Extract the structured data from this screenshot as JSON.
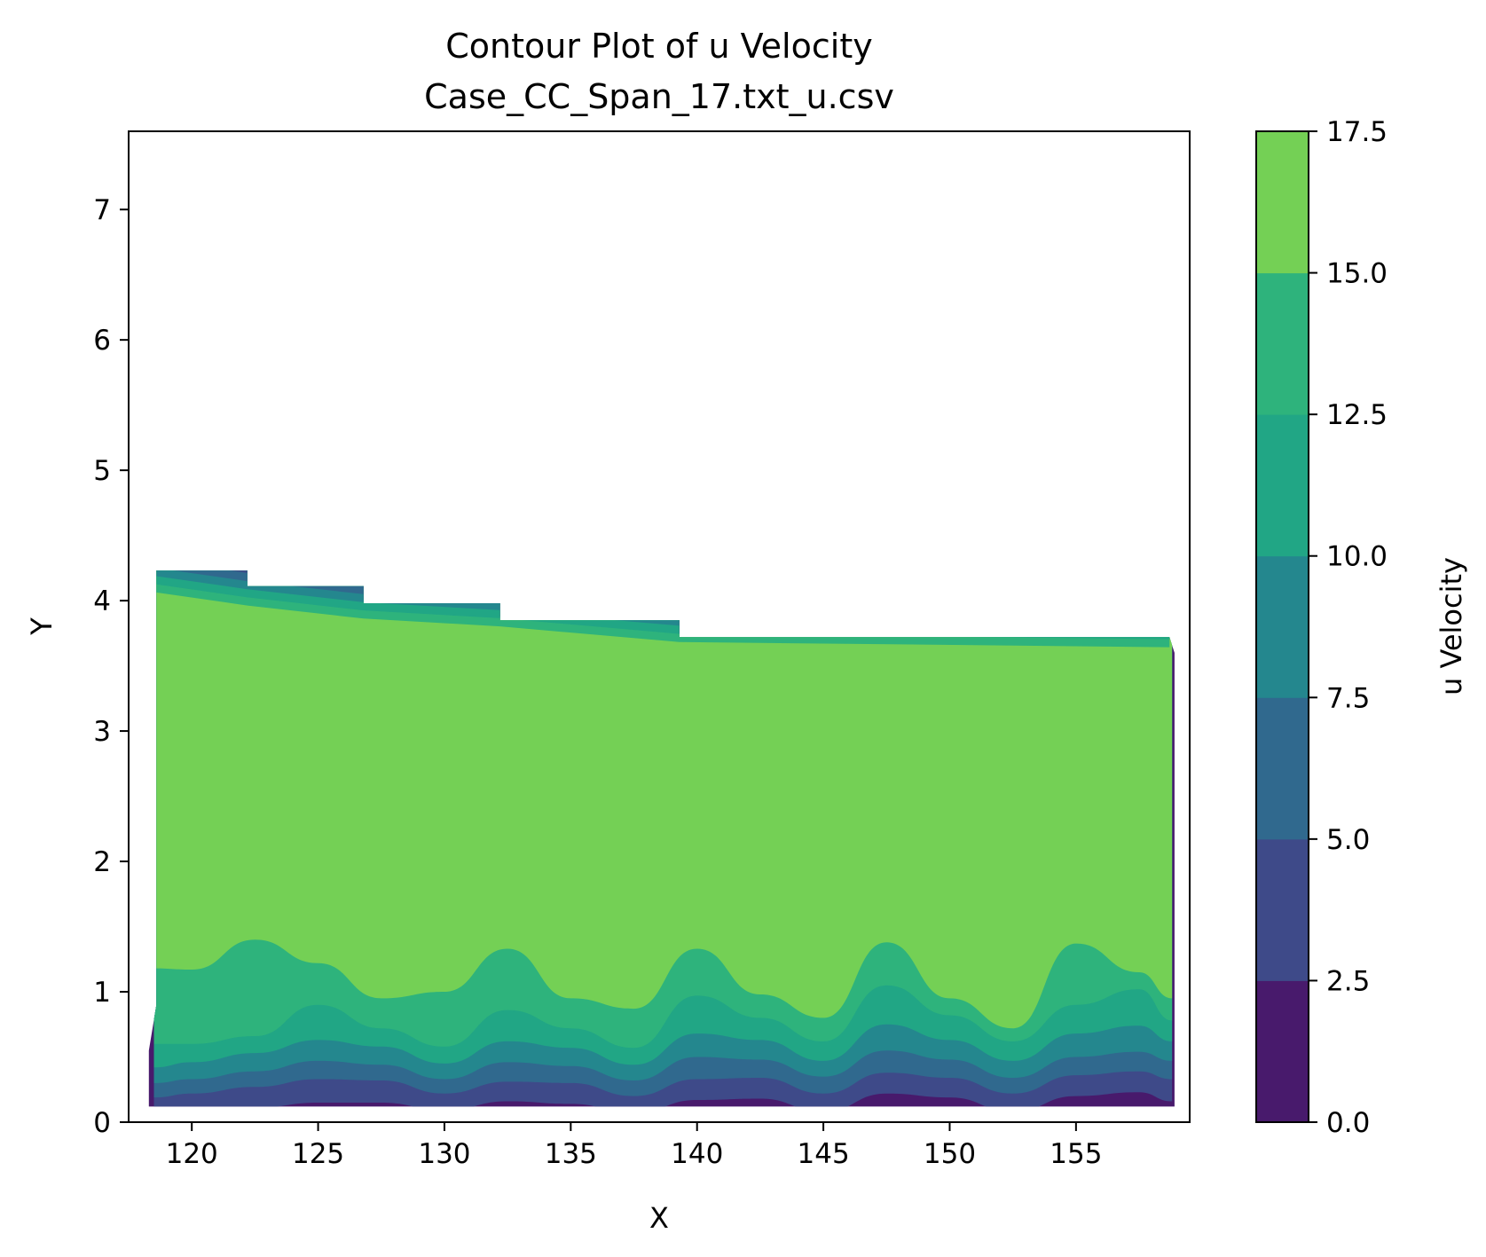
{
  "chart_data": {
    "type": "contourf",
    "title": "Contour Plot of u Velocity",
    "subtitle": "Case_CC_Span_17.txt_u.csv",
    "xlabel": "X",
    "ylabel": "Y",
    "xlim": [
      117.5,
      159.5
    ],
    "ylim": [
      0,
      7.6
    ],
    "xticks": [
      "120",
      "125",
      "130",
      "135",
      "140",
      "145",
      "150",
      "155"
    ],
    "xtick_values": [
      120,
      125,
      130,
      135,
      140,
      145,
      150,
      155
    ],
    "yticks": [
      "0",
      "1",
      "2",
      "3",
      "4",
      "5",
      "6",
      "7"
    ],
    "ytick_values": [
      0,
      1,
      2,
      3,
      4,
      5,
      6,
      7
    ],
    "grid": false,
    "colorbar": {
      "label": "u Velocity",
      "levels": [
        0,
        2.5,
        5,
        7.5,
        10,
        12.5,
        15,
        17.5
      ],
      "tick_labels": [
        "0.0",
        "2.5",
        "5.0",
        "7.5",
        "10.0",
        "12.5",
        "15.0",
        "17.5"
      ],
      "colors": [
        "#481a6c",
        "#3e4a89",
        "#30698e",
        "#24878e",
        "#21a685",
        "#2eb37c",
        "#74d055",
        "#d0e11c"
      ],
      "colormap": "viridis"
    },
    "domain": {
      "x_range": [
        118.3,
        158.9
      ],
      "y_bottom": 0.12,
      "top_boundary_steps": [
        {
          "x": [
            118.6,
            122.2
          ],
          "y": 4.23
        },
        {
          "x": [
            122.2,
            126.8
          ],
          "y": 4.11
        },
        {
          "x": [
            126.8,
            132.2
          ],
          "y": 3.98
        },
        {
          "x": [
            132.2,
            139.3
          ],
          "y": 3.85
        },
        {
          "x": [
            139.3,
            158.7
          ],
          "y": 3.72
        }
      ]
    },
    "regions": [
      {
        "level_index": 0,
        "x": [
          118.5,
          120,
          122.5,
          125,
          127.5,
          130,
          132.5,
          135,
          137.5,
          140,
          142.5,
          145,
          147.5,
          150,
          152.5,
          155,
          157.5,
          158.8
        ],
        "y": [
          0.06,
          0.08,
          0.11,
          0.15,
          0.15,
          0.09,
          0.16,
          0.14,
          0.07,
          0.17,
          0.18,
          0.08,
          0.22,
          0.19,
          0.08,
          0.2,
          0.23,
          0.16
        ]
      },
      {
        "level_index": 1,
        "x": [
          118.5,
          120,
          122.5,
          125,
          127.5,
          130,
          132.5,
          135,
          137.5,
          140,
          142.5,
          145,
          147.5,
          150,
          152.5,
          155,
          157.5,
          158.8
        ],
        "y": [
          0.19,
          0.22,
          0.27,
          0.33,
          0.32,
          0.22,
          0.31,
          0.3,
          0.2,
          0.33,
          0.34,
          0.22,
          0.38,
          0.34,
          0.22,
          0.36,
          0.39,
          0.33
        ]
      },
      {
        "level_index": 2,
        "x": [
          118.5,
          120,
          122.5,
          125,
          127.5,
          130,
          132.5,
          135,
          137.5,
          140,
          142.5,
          145,
          147.5,
          150,
          152.5,
          155,
          157.5,
          158.8
        ],
        "y": [
          0.3,
          0.33,
          0.39,
          0.47,
          0.44,
          0.33,
          0.46,
          0.43,
          0.32,
          0.5,
          0.48,
          0.35,
          0.55,
          0.48,
          0.34,
          0.5,
          0.54,
          0.47
        ]
      },
      {
        "level_index": 3,
        "x": [
          118.5,
          120,
          122.5,
          125,
          127.5,
          130,
          132.5,
          135,
          137.5,
          140,
          142.5,
          145,
          147.5,
          150,
          152.5,
          155,
          157.5,
          158.8
        ],
        "y": [
          0.42,
          0.46,
          0.53,
          0.63,
          0.58,
          0.45,
          0.62,
          0.57,
          0.44,
          0.68,
          0.63,
          0.47,
          0.75,
          0.63,
          0.47,
          0.68,
          0.74,
          0.62
        ]
      },
      {
        "level_index": 4,
        "x": [
          118.5,
          120,
          122.5,
          125,
          127.5,
          130,
          132.5,
          135,
          137.5,
          140,
          142.5,
          145,
          147.5,
          150,
          152.5,
          155,
          157.5,
          158.8
        ],
        "y": [
          0.6,
          0.6,
          0.66,
          0.9,
          0.72,
          0.58,
          0.86,
          0.72,
          0.57,
          0.97,
          0.8,
          0.62,
          1.05,
          0.82,
          0.62,
          0.9,
          1.02,
          0.78
        ]
      },
      {
        "level_index": 5,
        "x": [
          118.5,
          120,
          122.5,
          125,
          127.5,
          130,
          132.5,
          135,
          137.5,
          140,
          142.5,
          145,
          147.5,
          150,
          152.5,
          155,
          157.5,
          158.8
        ],
        "y": [
          1.18,
          1.17,
          1.4,
          1.22,
          0.95,
          1.0,
          1.33,
          0.95,
          0.87,
          1.33,
          0.98,
          0.8,
          1.38,
          0.95,
          0.72,
          1.37,
          1.15,
          0.95
        ]
      },
      {
        "level_index": 6,
        "x": [
          118.6,
          122.2,
          126.8,
          132.2,
          139.3,
          158.7
        ],
        "y": [
          4.0,
          3.9,
          3.8,
          3.74,
          3.62,
          3.58
        ],
        "note_side": "top"
      }
    ]
  }
}
